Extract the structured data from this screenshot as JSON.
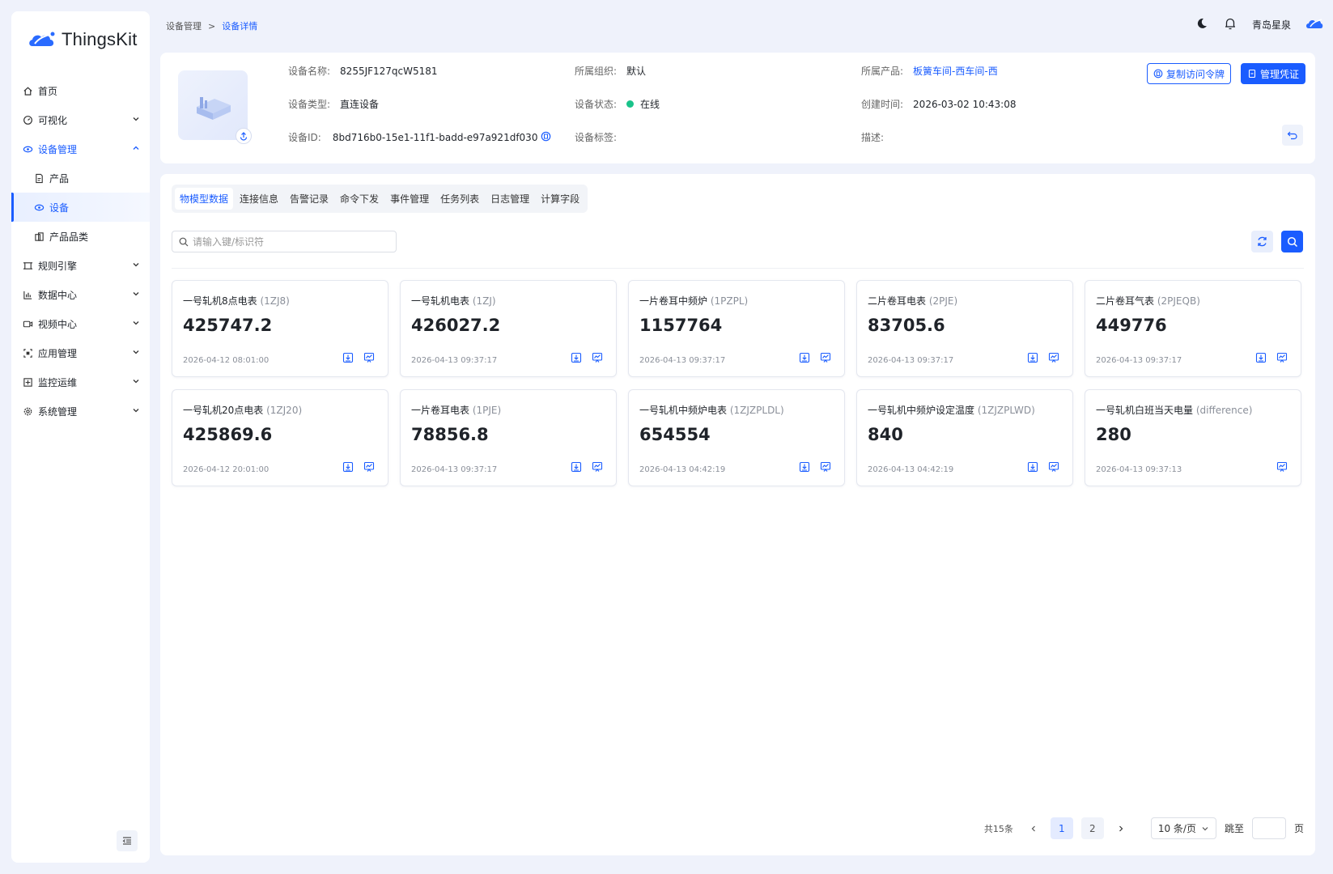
{
  "app": {
    "logo_text": "ThingsKit",
    "user_name": "青岛星泉",
    "brand_color": "#1a5cff"
  },
  "sidebar": {
    "items": [
      {
        "label": "首页",
        "icon": "home-icon"
      },
      {
        "label": "可视化",
        "icon": "dashboard-icon"
      },
      {
        "label": "设备管理",
        "icon": "device-management-icon"
      },
      {
        "label": "产品",
        "icon": "product-icon"
      },
      {
        "label": "设备",
        "icon": "device-icon"
      },
      {
        "label": "产品品类",
        "icon": "category-icon"
      },
      {
        "label": "规则引擎",
        "icon": "rule-engine-icon"
      },
      {
        "label": "数据中心",
        "icon": "data-center-icon"
      },
      {
        "label": "视频中心",
        "icon": "video-center-icon"
      },
      {
        "label": "应用管理",
        "icon": "app-management-icon"
      },
      {
        "label": "监控运维",
        "icon": "monitor-icon"
      },
      {
        "label": "系统管理",
        "icon": "system-settings-icon"
      }
    ]
  },
  "breadcrumb": {
    "parent": "设备管理",
    "separator": ">",
    "current": "设备详情"
  },
  "device": {
    "name_label": "设备名称:",
    "name": "8255JF127qcW5181",
    "type_label": "设备类型:",
    "type": "直连设备",
    "id_label": "设备ID:",
    "id": "8bd716b0-15e1-11f1-badd-e97a921df030",
    "org_label": "所属组织:",
    "org": "默认",
    "status_label": "设备状态:",
    "status": "在线",
    "status_color": "#19c38a",
    "tags_label": "设备标签:",
    "product_label": "所属产品:",
    "product": "板簧车间-西车间-西",
    "created_label": "创建时间:",
    "created": "2026-03-02 10:43:08",
    "desc_label": "描述:"
  },
  "actions": {
    "copy_token": "复制访问令牌",
    "manage_credentials": "管理凭证"
  },
  "tabs": [
    {
      "label": "物模型数据",
      "active": true
    },
    {
      "label": "连接信息"
    },
    {
      "label": "告警记录"
    },
    {
      "label": "命令下发"
    },
    {
      "label": "事件管理"
    },
    {
      "label": "任务列表"
    },
    {
      "label": "日志管理"
    },
    {
      "label": "计算字段"
    }
  ],
  "search": {
    "placeholder": "请输入键/标识符"
  },
  "cards": [
    {
      "name": "一号轧机8点电表",
      "ident": "(1ZJ8)",
      "value": "425747.2",
      "time": "2026-04-12 08:01:00",
      "download": true
    },
    {
      "name": "一号轧机电表",
      "ident": "(1ZJ)",
      "value": "426027.2",
      "time": "2026-04-13 09:37:17",
      "download": true
    },
    {
      "name": "一片卷耳中频炉",
      "ident": "(1PZPL)",
      "value": "1157764",
      "time": "2026-04-13 09:37:17",
      "download": true
    },
    {
      "name": "二片卷耳电表",
      "ident": "(2PJE)",
      "value": "83705.6",
      "time": "2026-04-13 09:37:17",
      "download": true
    },
    {
      "name": "二片卷耳气表",
      "ident": "(2PJEQB)",
      "value": "449776",
      "time": "2026-04-13 09:37:17",
      "download": true
    },
    {
      "name": "一号轧机20点电表",
      "ident": "(1ZJ20)",
      "value": "425869.6",
      "time": "2026-04-12 20:01:00",
      "download": true
    },
    {
      "name": "一片卷耳电表",
      "ident": "(1PJE)",
      "value": "78856.8",
      "time": "2026-04-13 09:37:17",
      "download": true
    },
    {
      "name": "一号轧机中频炉电表",
      "ident": "(1ZJZPLDL)",
      "value": "654554",
      "time": "2026-04-13 04:42:19",
      "download": true
    },
    {
      "name": "一号轧机中频炉设定温度",
      "ident": "(1ZJZPLWD)",
      "value": "840",
      "time": "2026-04-13 04:42:19",
      "download": true
    },
    {
      "name": "一号轧机白班当天电量",
      "ident": "(difference)",
      "value": "280",
      "time": "2026-04-13 09:37:13",
      "download": false
    }
  ],
  "pagination": {
    "total": "共15条",
    "pages": [
      "1",
      "2"
    ],
    "current": "1",
    "page_size": "10 条/页",
    "jump_label": "跳至",
    "page_suffix": "页"
  }
}
